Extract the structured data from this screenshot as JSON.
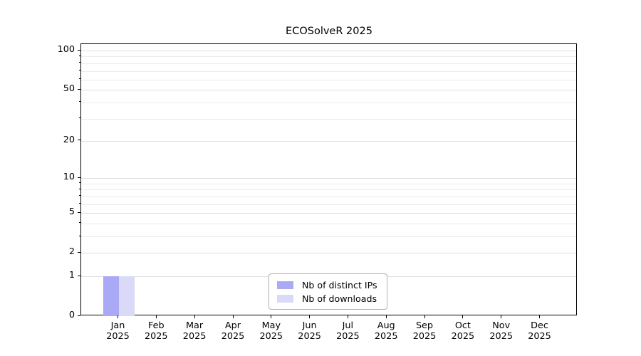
{
  "figure": {
    "background": "#ffffff"
  },
  "chart_data": {
    "type": "bar",
    "title": "ECOSolveR 2025",
    "categories": [
      {
        "month": "Jan",
        "year": "2025"
      },
      {
        "month": "Feb",
        "year": "2025"
      },
      {
        "month": "Mar",
        "year": "2025"
      },
      {
        "month": "Apr",
        "year": "2025"
      },
      {
        "month": "May",
        "year": "2025"
      },
      {
        "month": "Jun",
        "year": "2025"
      },
      {
        "month": "Jul",
        "year": "2025"
      },
      {
        "month": "Aug",
        "year": "2025"
      },
      {
        "month": "Sep",
        "year": "2025"
      },
      {
        "month": "Oct",
        "year": "2025"
      },
      {
        "month": "Nov",
        "year": "2025"
      },
      {
        "month": "Dec",
        "year": "2025"
      }
    ],
    "series": [
      {
        "name": "Nb of distinct IPs",
        "color": "#a9a9f5",
        "values": [
          1,
          0,
          0,
          0,
          0,
          0,
          0,
          0,
          0,
          0,
          0,
          0
        ]
      },
      {
        "name": "Nb of downloads",
        "color": "#dadaf8",
        "values": [
          1,
          0,
          0,
          0,
          0,
          0,
          0,
          0,
          0,
          0,
          0,
          0
        ]
      }
    ],
    "y_axis": {
      "scale": "log1p",
      "ticks": [
        0,
        1,
        2,
        5,
        10,
        20,
        50,
        100
      ],
      "minor_ticks": [
        3,
        4,
        6,
        7,
        8,
        9,
        30,
        40,
        60,
        70,
        80,
        90
      ],
      "range": [
        0,
        100
      ]
    },
    "x_axis": {
      "label": ""
    },
    "legend": {
      "position": "inside-bottom-center"
    },
    "style": {
      "axis_color": "#000000",
      "grid_major_color": "#dfdfdf",
      "grid_minor_color": "#ebebeb",
      "legend_border_color": "#b0b0b0"
    }
  }
}
